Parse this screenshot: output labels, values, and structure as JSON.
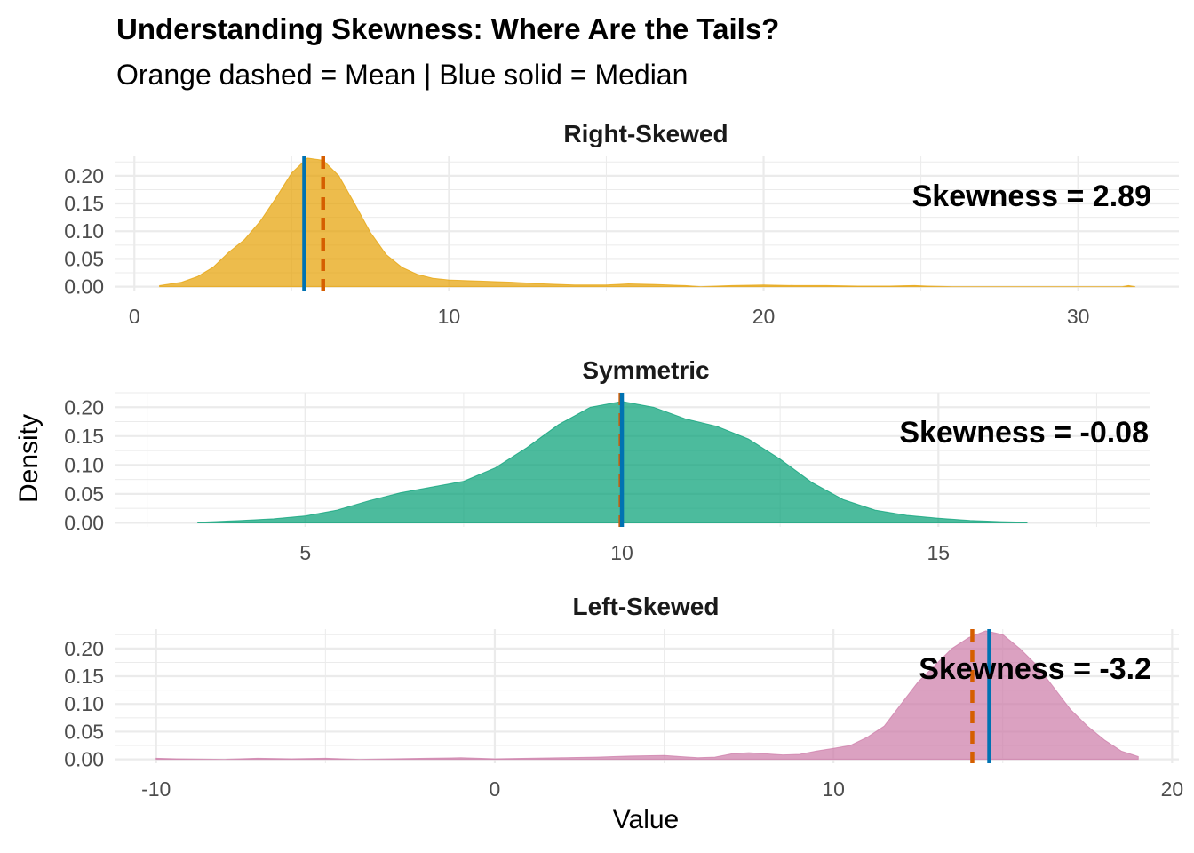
{
  "title": "Understanding Skewness: Where Are the Tails?",
  "subtitle": "Orange dashed = Mean  |  Blue solid = Median",
  "ylabel": "Density",
  "xlabel": "Value",
  "colors": {
    "mean_line": "#D55E00",
    "median_line": "#0072B2",
    "grid": "#ebebeb"
  },
  "chart_data": [
    {
      "type": "area",
      "title": "Right-Skewed",
      "annotation": "Skewness = 2.89",
      "fill": "#E69F00",
      "xlim": [
        -0.6,
        33.2
      ],
      "ylim": [
        -0.007,
        0.235
      ],
      "x_ticks": [
        0,
        10,
        20,
        30
      ],
      "y_ticks": [
        0.0,
        0.05,
        0.1,
        0.15,
        0.2
      ],
      "y_tick_labels": [
        "0.00",
        "0.05",
        "0.10",
        "0.15",
        "0.20"
      ],
      "mean": 6.0,
      "median": 5.4,
      "density": {
        "x": [
          0.8,
          1.5,
          2.0,
          2.5,
          3.0,
          3.5,
          4.0,
          4.5,
          5.0,
          5.5,
          6.0,
          6.5,
          7.0,
          7.5,
          8.0,
          8.5,
          9.0,
          9.5,
          10.0,
          11.0,
          12.0,
          13.0,
          14.0,
          15.0,
          15.7,
          16.5,
          17.5,
          18.0,
          19.0,
          20.0,
          21.0,
          22.0,
          23.0,
          24.0,
          24.8,
          25.2,
          26.0,
          28.0,
          30.0,
          31.4,
          31.6,
          31.8
        ],
        "y": [
          0.002,
          0.008,
          0.018,
          0.035,
          0.062,
          0.085,
          0.118,
          0.16,
          0.205,
          0.232,
          0.228,
          0.2,
          0.15,
          0.098,
          0.058,
          0.035,
          0.022,
          0.015,
          0.012,
          0.01,
          0.008,
          0.005,
          0.003,
          0.003,
          0.005,
          0.004,
          0.002,
          0.0,
          0.002,
          0.003,
          0.002,
          0.002,
          0.001,
          0.001,
          0.002,
          0.001,
          0.0,
          0.0,
          0.0,
          0.0,
          0.002,
          0.0
        ]
      }
    },
    {
      "type": "area",
      "title": "Symmetric",
      "annotation": "Skewness = -0.08",
      "fill": "#009E73",
      "xlim": [
        2.0,
        18.35
      ],
      "ylim": [
        -0.007,
        0.225
      ],
      "x_ticks": [
        5,
        10,
        15
      ],
      "y_ticks": [
        0.0,
        0.05,
        0.1,
        0.15,
        0.2
      ],
      "y_tick_labels": [
        "0.00",
        "0.05",
        "0.10",
        "0.15",
        "0.20"
      ],
      "mean": 9.98,
      "median": 10.0,
      "density": {
        "x": [
          3.3,
          4.0,
          4.5,
          5.0,
          5.5,
          6.0,
          6.5,
          7.0,
          7.5,
          8.0,
          8.5,
          9.0,
          9.5,
          10.0,
          10.5,
          11.0,
          11.5,
          12.0,
          12.5,
          13.0,
          13.5,
          14.0,
          14.5,
          15.0,
          15.5,
          16.0,
          16.4
        ],
        "y": [
          0.001,
          0.004,
          0.007,
          0.012,
          0.022,
          0.038,
          0.052,
          0.062,
          0.072,
          0.095,
          0.13,
          0.17,
          0.2,
          0.21,
          0.2,
          0.18,
          0.167,
          0.145,
          0.11,
          0.07,
          0.04,
          0.022,
          0.013,
          0.008,
          0.004,
          0.002,
          0.001
        ]
      }
    },
    {
      "type": "area",
      "title": "Left-Skewed",
      "annotation": "Skewness = -3.2",
      "fill": "#CC79A7",
      "xlim": [
        -11.2,
        20.2
      ],
      "ylim": [
        -0.007,
        0.235
      ],
      "x_ticks": [
        -10,
        0,
        10,
        20
      ],
      "y_ticks": [
        0.0,
        0.05,
        0.1,
        0.15,
        0.2
      ],
      "y_tick_labels": [
        "0.00",
        "0.05",
        "0.10",
        "0.15",
        "0.20"
      ],
      "mean": 14.1,
      "median": 14.6,
      "density": {
        "x": [
          -10.0,
          -9.4,
          -8.0,
          -7.0,
          -6.0,
          -5.0,
          -4.0,
          -2.0,
          -1.0,
          0.0,
          1.0,
          2.0,
          3.0,
          4.0,
          5.0,
          6.0,
          6.5,
          7.0,
          7.5,
          8.0,
          8.5,
          9.0,
          9.5,
          10.0,
          10.5,
          11.0,
          11.5,
          12.0,
          12.5,
          13.0,
          13.5,
          14.0,
          14.5,
          15.0,
          15.5,
          16.0,
          16.5,
          17.0,
          17.5,
          18.0,
          18.5,
          19.0
        ],
        "y": [
          0.002,
          0.001,
          0.0,
          0.002,
          0.001,
          0.002,
          0.0,
          0.002,
          0.003,
          0.001,
          0.002,
          0.003,
          0.004,
          0.006,
          0.007,
          0.003,
          0.004,
          0.01,
          0.012,
          0.01,
          0.008,
          0.009,
          0.015,
          0.02,
          0.025,
          0.04,
          0.06,
          0.1,
          0.14,
          0.17,
          0.2,
          0.22,
          0.232,
          0.225,
          0.2,
          0.17,
          0.13,
          0.09,
          0.06,
          0.035,
          0.015,
          0.005
        ]
      }
    }
  ]
}
